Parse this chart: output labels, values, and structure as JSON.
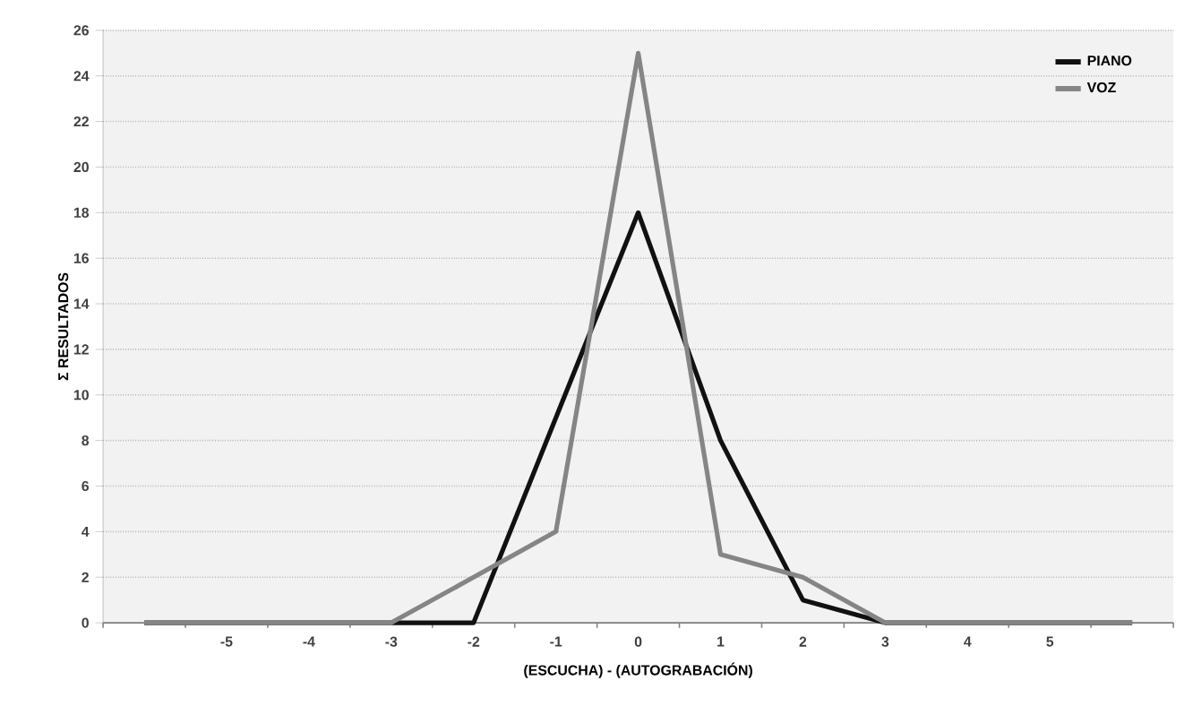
{
  "chart_data": {
    "type": "line",
    "xlabel": "(ESCUCHA) - (AUTOGRABACIÓN)",
    "ylabel": "Σ RESULTADOS",
    "categories": [
      null,
      "-5",
      "-4",
      "-3",
      "-2",
      "-1",
      "0",
      "1",
      "2",
      "3",
      "4",
      "5",
      null
    ],
    "series": [
      {
        "name": "PIANO",
        "color": "#111111",
        "values": [
          0,
          0,
          0,
          0,
          0,
          9,
          18,
          8,
          1,
          0,
          0,
          0,
          0
        ]
      },
      {
        "name": "VOZ",
        "color": "#858585",
        "values": [
          0,
          0,
          0,
          0,
          2,
          4,
          25,
          3,
          2,
          0,
          0,
          0,
          0
        ]
      }
    ],
    "ylim": [
      0,
      26
    ],
    "yticks": [
      0,
      2,
      4,
      6,
      8,
      10,
      12,
      14,
      16,
      18,
      20,
      22,
      24,
      26
    ],
    "grid": "y",
    "legend": "top right",
    "marker": "none",
    "line_style": "solid"
  }
}
